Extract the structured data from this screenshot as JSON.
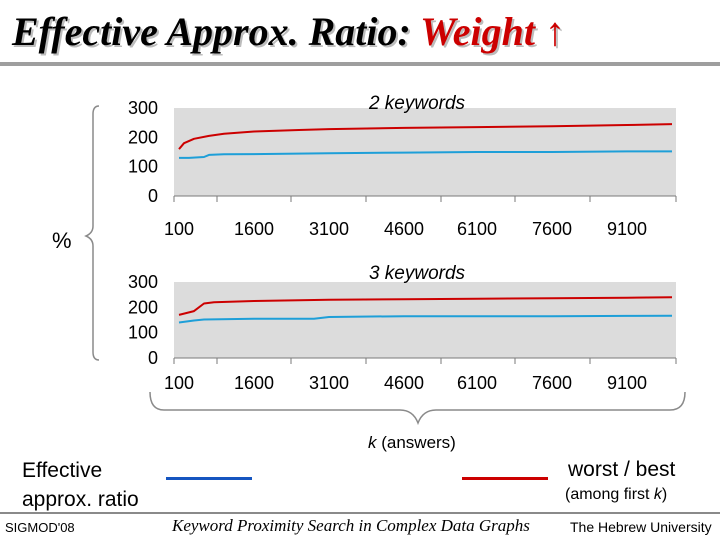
{
  "slide": {
    "title_main": "Effective Approx. Ratio: ",
    "title_accent": "Weight ↑",
    "y_unit": "%",
    "x_label_var": "k",
    "x_label_rest": " (answers)",
    "legend_left_line1": "Effective",
    "legend_left_line2": "approx. ratio",
    "legend_right_line1": "worst / best",
    "legend_right_line2_pre": "(among first ",
    "legend_right_line2_var": "k",
    "legend_right_line2_post": ")",
    "footer_left": "SIGMOD'08",
    "footer_center": "Keyword Proximity Search in Complex Data Graphs",
    "footer_right": "The Hebrew University"
  },
  "colors": {
    "worst_best": "#cc0000",
    "effective": "#1e9fd8",
    "plot_bg": "#dcdcdc"
  },
  "chart_data": [
    {
      "type": "line",
      "title": "2 keywords",
      "ylim": [
        0,
        300
      ],
      "yticks": [
        300,
        200,
        100,
        0
      ],
      "xlim": [
        100,
        10000
      ],
      "xticks": [
        100,
        1600,
        3100,
        4600,
        6100,
        7600,
        9100
      ],
      "grid": false,
      "series": [
        {
          "color": "#cc0000",
          "x": [
            100,
            200,
            400,
            700,
            1000,
            1600,
            2500,
            3100,
            4600,
            6100,
            7600,
            9100,
            10000
          ],
          "y": [
            160,
            180,
            195,
            205,
            212,
            220,
            225,
            228,
            232,
            235,
            238,
            242,
            245
          ]
        },
        {
          "color": "#1e9fd8",
          "x": [
            100,
            300,
            600,
            700,
            1000,
            1600,
            3100,
            4600,
            6100,
            7600,
            9100,
            10000
          ],
          "y": [
            130,
            130,
            133,
            140,
            142,
            143,
            146,
            148,
            150,
            150,
            152,
            152
          ]
        }
      ]
    },
    {
      "type": "line",
      "title": "3 keywords",
      "ylim": [
        0,
        300
      ],
      "yticks": [
        300,
        200,
        100,
        0
      ],
      "xlim": [
        100,
        10000
      ],
      "xticks": [
        100,
        1600,
        3100,
        4600,
        6100,
        7600,
        9100
      ],
      "grid": false,
      "series": [
        {
          "color": "#cc0000",
          "x": [
            100,
            400,
            600,
            800,
            1600,
            3100,
            4600,
            6100,
            7600,
            9100,
            10000
          ],
          "y": [
            170,
            185,
            215,
            220,
            225,
            230,
            232,
            234,
            236,
            238,
            240
          ]
        },
        {
          "color": "#1e9fd8",
          "x": [
            100,
            400,
            600,
            1600,
            2800,
            3100,
            4600,
            6100,
            7600,
            9100,
            10000
          ],
          "y": [
            140,
            148,
            152,
            155,
            155,
            162,
            165,
            165,
            165,
            166,
            167
          ]
        }
      ]
    }
  ]
}
